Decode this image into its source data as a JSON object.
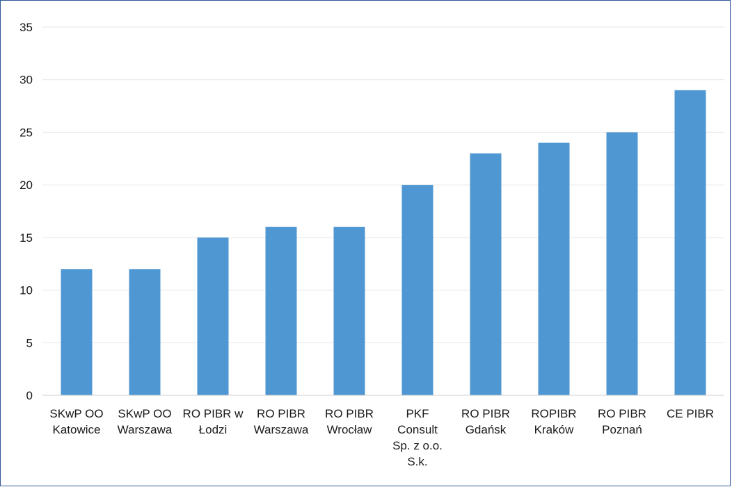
{
  "chart_data": {
    "type": "bar",
    "title": "",
    "xlabel": "",
    "ylabel": "",
    "categories": [
      [
        "SKwP OO",
        "Katowice"
      ],
      [
        "SKwP OO",
        "Warszawa"
      ],
      [
        "RO PIBR w",
        "Łodzi"
      ],
      [
        "RO PIBR",
        "Warszawa"
      ],
      [
        "RO PIBR",
        "Wrocław"
      ],
      [
        "PKF",
        "Consult",
        "Sp. z o.o.",
        "S.k."
      ],
      [
        "RO PIBR",
        "Gdańsk"
      ],
      [
        "ROPIBR",
        "Kraków"
      ],
      [
        "RO PIBR",
        "Poznań"
      ],
      [
        "CE PIBR"
      ]
    ],
    "values": [
      12,
      12,
      15,
      16,
      16,
      20,
      23,
      24,
      25,
      29
    ],
    "ylim": [
      0,
      35
    ],
    "yticks": [
      "0",
      "5",
      "10",
      "15",
      "20",
      "25",
      "30",
      "35"
    ],
    "grid": true,
    "legend": "none",
    "colors": {
      "bar": "#4f97d2",
      "grid": "#e6e6e6",
      "axis": "#cfcfcf",
      "border": "#2e5597"
    }
  }
}
